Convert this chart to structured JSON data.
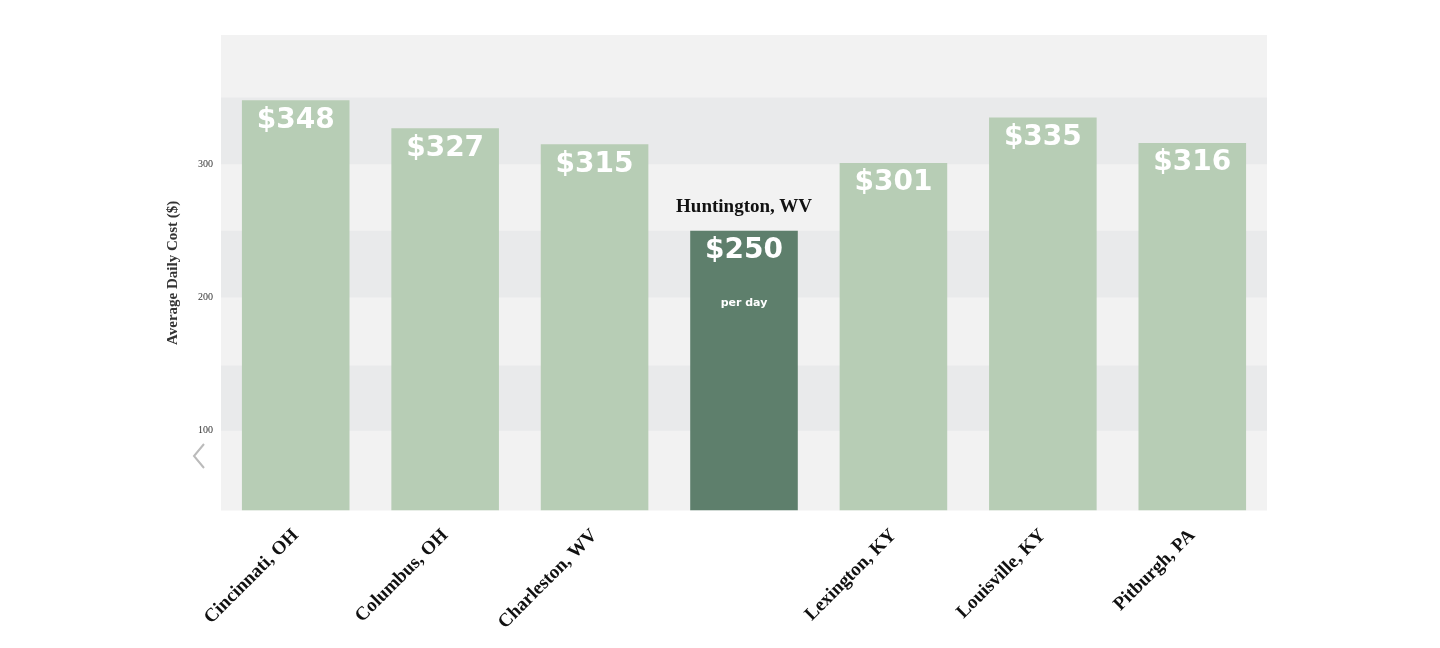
{
  "chart_data": {
    "type": "bar",
    "ylabel": "Average Daily Cost ($)",
    "categories": [
      "Cincinnati, OH",
      "Columbus, OH",
      "Charleston, WV",
      null,
      "Lexington, KY",
      "Louisville, KY",
      "Pitburgh, PA"
    ],
    "values": [
      348,
      327,
      315,
      250,
      301,
      335,
      316
    ],
    "colors": [
      "#b7cdb5",
      "#b7cdb5",
      "#b7cdb5",
      "#5e7f6c",
      "#b7cdb5",
      "#b7cdb5",
      "#b7cdb5"
    ],
    "value_labels": [
      "$348",
      "$327",
      "$315",
      "$250",
      "$301",
      "$335",
      "$316"
    ],
    "ylim": [
      40,
      397
    ],
    "yticks": [
      100,
      200,
      300
    ],
    "grid": false,
    "legend": false,
    "bands": [
      {
        "axis": "y",
        "from": 100,
        "to": 149,
        "color": "#e9eaeb"
      },
      {
        "axis": "y",
        "from": 200,
        "to": 250,
        "color": "#e9eaeb"
      },
      {
        "axis": "y",
        "from": 300,
        "to": 350,
        "color": "#e9eaeb"
      }
    ],
    "annotations": [
      "Huntington, WV",
      "per day"
    ]
  }
}
